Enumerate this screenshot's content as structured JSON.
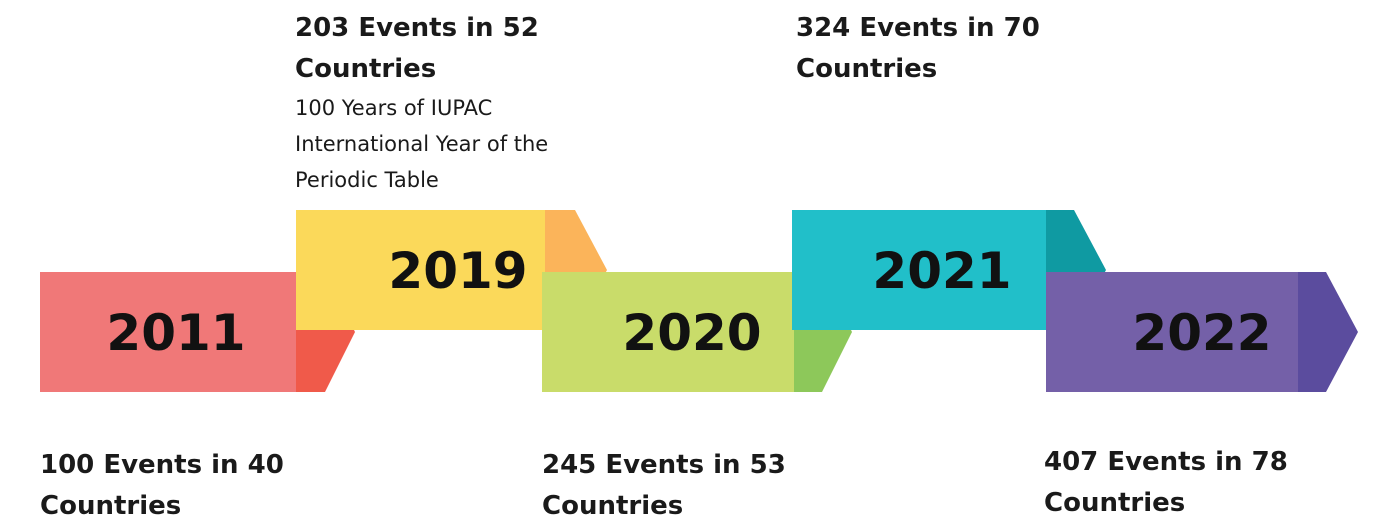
{
  "timeline": [
    {
      "year": "2011",
      "headline_line1": "100 Events in 40",
      "headline_line2": "Countries",
      "color_main": "#f07878",
      "color_tip": "#f05a4a"
    },
    {
      "year": "2019",
      "headline_line1": "203 Events in 52",
      "headline_line2": "Countries",
      "note_lines": [
        "100 Years of IUPAC",
        "International Year of the",
        "Periodic Table"
      ],
      "color_main": "#fbd95a",
      "color_tip": "#fbb45a"
    },
    {
      "year": "2020",
      "headline_line1": "245 Events in 53",
      "headline_line2": "Countries",
      "color_main": "#c9dc6a",
      "color_tip": "#8dc85a"
    },
    {
      "year": "2021",
      "headline_line1": "324 Events in 70",
      "headline_line2": "Countries",
      "color_main": "#21bfc9",
      "color_tip": "#0f9aa2"
    },
    {
      "year": "2022",
      "headline_line1": "407 Events in 78",
      "headline_line2": "Countries",
      "color_main": "#7460a8",
      "color_tip": "#5b4c9e"
    }
  ]
}
